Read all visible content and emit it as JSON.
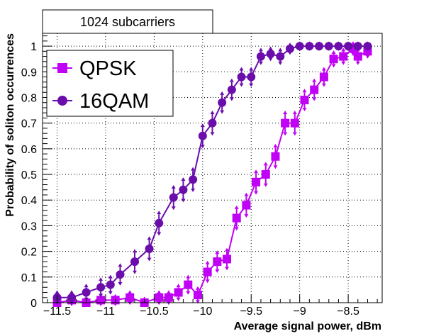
{
  "chart_data": {
    "type": "line",
    "title": "1024 subcarriers",
    "xlabel": "Average signal power, dBm",
    "ylabel": "Probability of soliton occurrences",
    "xlim": [
      -11.65,
      -8.15
    ],
    "ylim": [
      0,
      1.05
    ],
    "x_ticks": [
      -11.5,
      -11,
      -10.5,
      -10,
      -9.5,
      -9,
      -8.5
    ],
    "x_tick_labels": [
      "−11.5",
      "−11",
      "−10.5",
      "−10",
      "−9.5",
      "−9",
      "−8.5"
    ],
    "y_ticks": [
      0,
      0.1,
      0.2,
      0.3,
      0.4,
      0.5,
      0.6,
      0.7,
      0.8,
      0.9,
      1
    ],
    "y_tick_labels": [
      "0",
      "0.1",
      "0.2",
      "0.3",
      "0.4",
      "0.5",
      "0.6",
      "0.7",
      "0.8",
      "0.9",
      "1"
    ],
    "grid": true,
    "legend_position": "top-left",
    "series": [
      {
        "name": "QPSK",
        "color": "#c100f6",
        "marker": "square",
        "x": [
          -11.5,
          -11.35,
          -11.2,
          -11.05,
          -10.9,
          -10.75,
          -10.6,
          -10.45,
          -10.35,
          -10.25,
          -10.15,
          -10.05,
          -9.95,
          -9.85,
          -9.75,
          -9.65,
          -9.55,
          -9.45,
          -9.35,
          -9.25,
          -9.15,
          -9.05,
          -8.95,
          -8.85,
          -8.75,
          -8.65,
          -8.55,
          -8.45,
          -8.4,
          -8.3
        ],
        "y": [
          0.0,
          0.01,
          0.0,
          0.01,
          0.01,
          0.02,
          0.0,
          0.02,
          0.02,
          0.04,
          0.07,
          0.03,
          0.12,
          0.16,
          0.17,
          0.33,
          0.38,
          0.47,
          0.5,
          0.57,
          0.7,
          0.7,
          0.79,
          0.83,
          0.88,
          0.95,
          0.96,
          0.99,
          0.96,
          0.98
        ],
        "err": [
          0.01,
          0.01,
          0.01,
          0.01,
          0.01,
          0.015,
          0.01,
          0.015,
          0.015,
          0.02,
          0.025,
          0.02,
          0.03,
          0.03,
          0.03,
          0.035,
          0.035,
          0.035,
          0.035,
          0.035,
          0.035,
          0.035,
          0.03,
          0.03,
          0.025,
          0.02,
          0.02,
          0.015,
          0.02,
          0.015
        ]
      },
      {
        "name": "16QAM",
        "color": "#6a0dab",
        "marker": "circle",
        "x": [
          -11.5,
          -11.35,
          -11.2,
          -11.05,
          -10.95,
          -10.85,
          -10.7,
          -10.55,
          -10.45,
          -10.3,
          -10.2,
          -10.1,
          -10.0,
          -9.9,
          -9.8,
          -9.7,
          -9.6,
          -9.5,
          -9.4,
          -9.3,
          -9.2,
          -9.1,
          -9.0,
          -8.9,
          -8.8,
          -8.7,
          -8.6,
          -8.5,
          -8.4,
          -8.3
        ],
        "y": [
          0.02,
          0.02,
          0.04,
          0.06,
          0.07,
          0.11,
          0.16,
          0.21,
          0.31,
          0.41,
          0.44,
          0.48,
          0.65,
          0.7,
          0.78,
          0.83,
          0.88,
          0.88,
          0.96,
          0.97,
          0.96,
          0.99,
          1.0,
          1.0,
          1.0,
          1.0,
          1.0,
          1.0,
          1.0,
          1.0
        ],
        "err": [
          0.015,
          0.015,
          0.02,
          0.025,
          0.025,
          0.03,
          0.035,
          0.035,
          0.035,
          0.035,
          0.035,
          0.035,
          0.035,
          0.035,
          0.03,
          0.03,
          0.025,
          0.025,
          0.02,
          0.015,
          0.02,
          0.01,
          0.005,
          0.005,
          0.005,
          0.005,
          0.005,
          0.005,
          0.005,
          0.005
        ]
      }
    ]
  }
}
